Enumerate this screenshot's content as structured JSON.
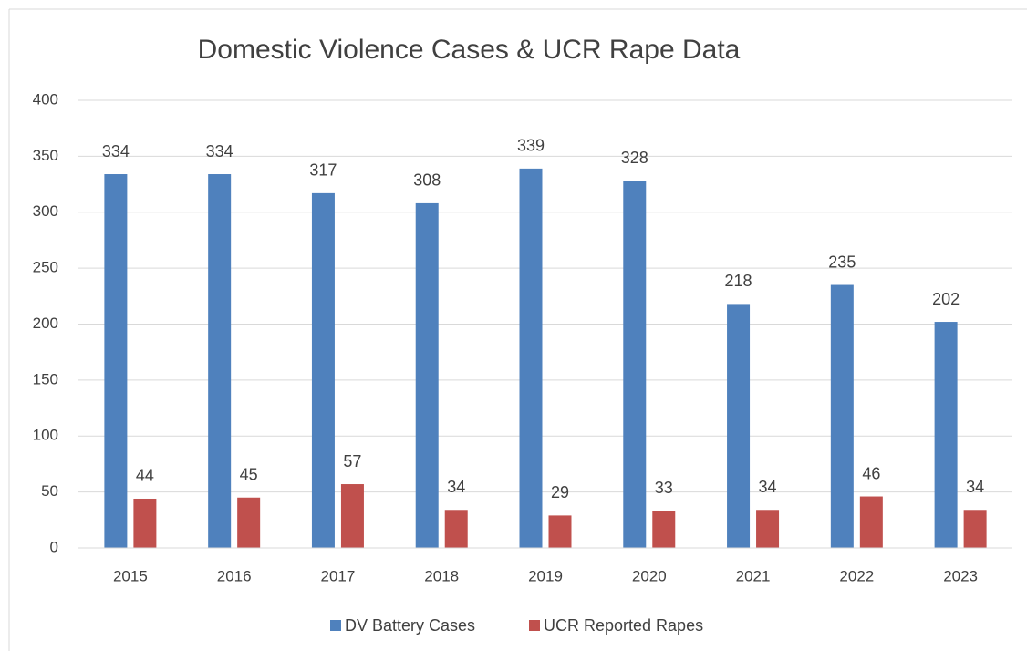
{
  "chart_data": {
    "type": "bar",
    "title": "Domestic Violence Cases & UCR Rape Data",
    "categories": [
      "2015",
      "2016",
      "2017",
      "2018",
      "2019",
      "2020",
      "2021",
      "2022",
      "2023"
    ],
    "series": [
      {
        "name": "DV Battery Cases",
        "color": "#4f81bd",
        "values": [
          334,
          334,
          317,
          308,
          339,
          328,
          218,
          235,
          202
        ]
      },
      {
        "name": "UCR Reported Rapes",
        "color": "#c0504d",
        "values": [
          44,
          45,
          57,
          34,
          29,
          33,
          34,
          46,
          34
        ]
      }
    ],
    "ylim": [
      0,
      400
    ],
    "yticks": [
      0,
      50,
      100,
      150,
      200,
      250,
      300,
      350,
      400
    ],
    "grid": true,
    "legend": "bottom"
  }
}
